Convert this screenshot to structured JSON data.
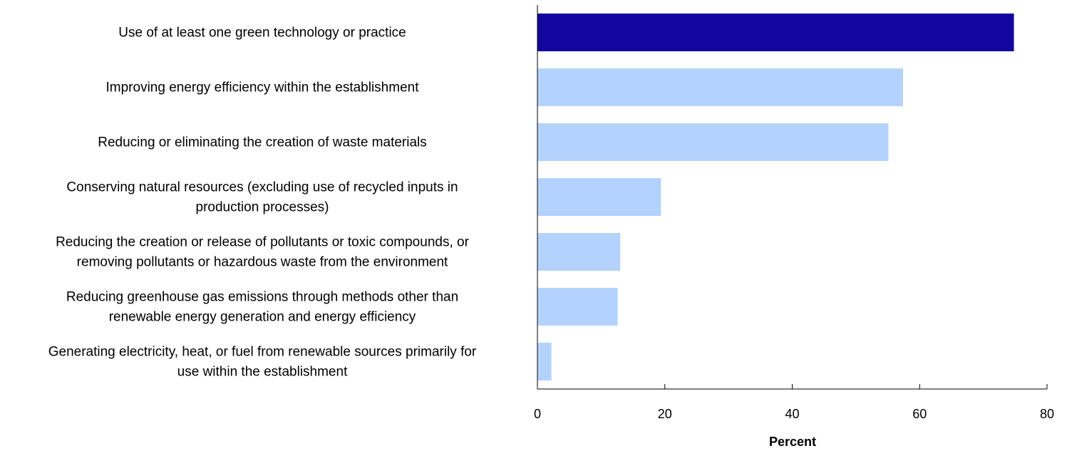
{
  "chart_data": {
    "type": "bar",
    "orientation": "horizontal",
    "categories": [
      [
        "Use of at least one green technology or practice"
      ],
      [
        "Improving energy efficiency within the establishment"
      ],
      [
        "Reducing or eliminating the creation of waste materials"
      ],
      [
        "Conserving natural resources (excluding use of recycled inputs in",
        "production processes)"
      ],
      [
        "Reducing the creation or release of pollutants or toxic compounds, or",
        "removing pollutants or hazardous waste from the environment"
      ],
      [
        "Reducing greenhouse gas emissions through methods other than",
        "renewable energy generation and energy efficiency"
      ],
      [
        "Generating electricity, heat, or fuel from renewable sources primarily for",
        "use within the establishment"
      ]
    ],
    "values": [
      74.8,
      57.4,
      55.1,
      19.4,
      13.0,
      12.6,
      2.2
    ],
    "bar_colors": [
      "#12069f",
      "#b3d3fe",
      "#b3d3fe",
      "#b3d3fe",
      "#b3d3fe",
      "#b3d3fe",
      "#b3d3fe"
    ],
    "xlabel": "Percent",
    "xlim": [
      0,
      80
    ],
    "xticks": [
      "0",
      "20",
      "40",
      "60",
      "80"
    ],
    "grid": false,
    "legend": "none"
  }
}
